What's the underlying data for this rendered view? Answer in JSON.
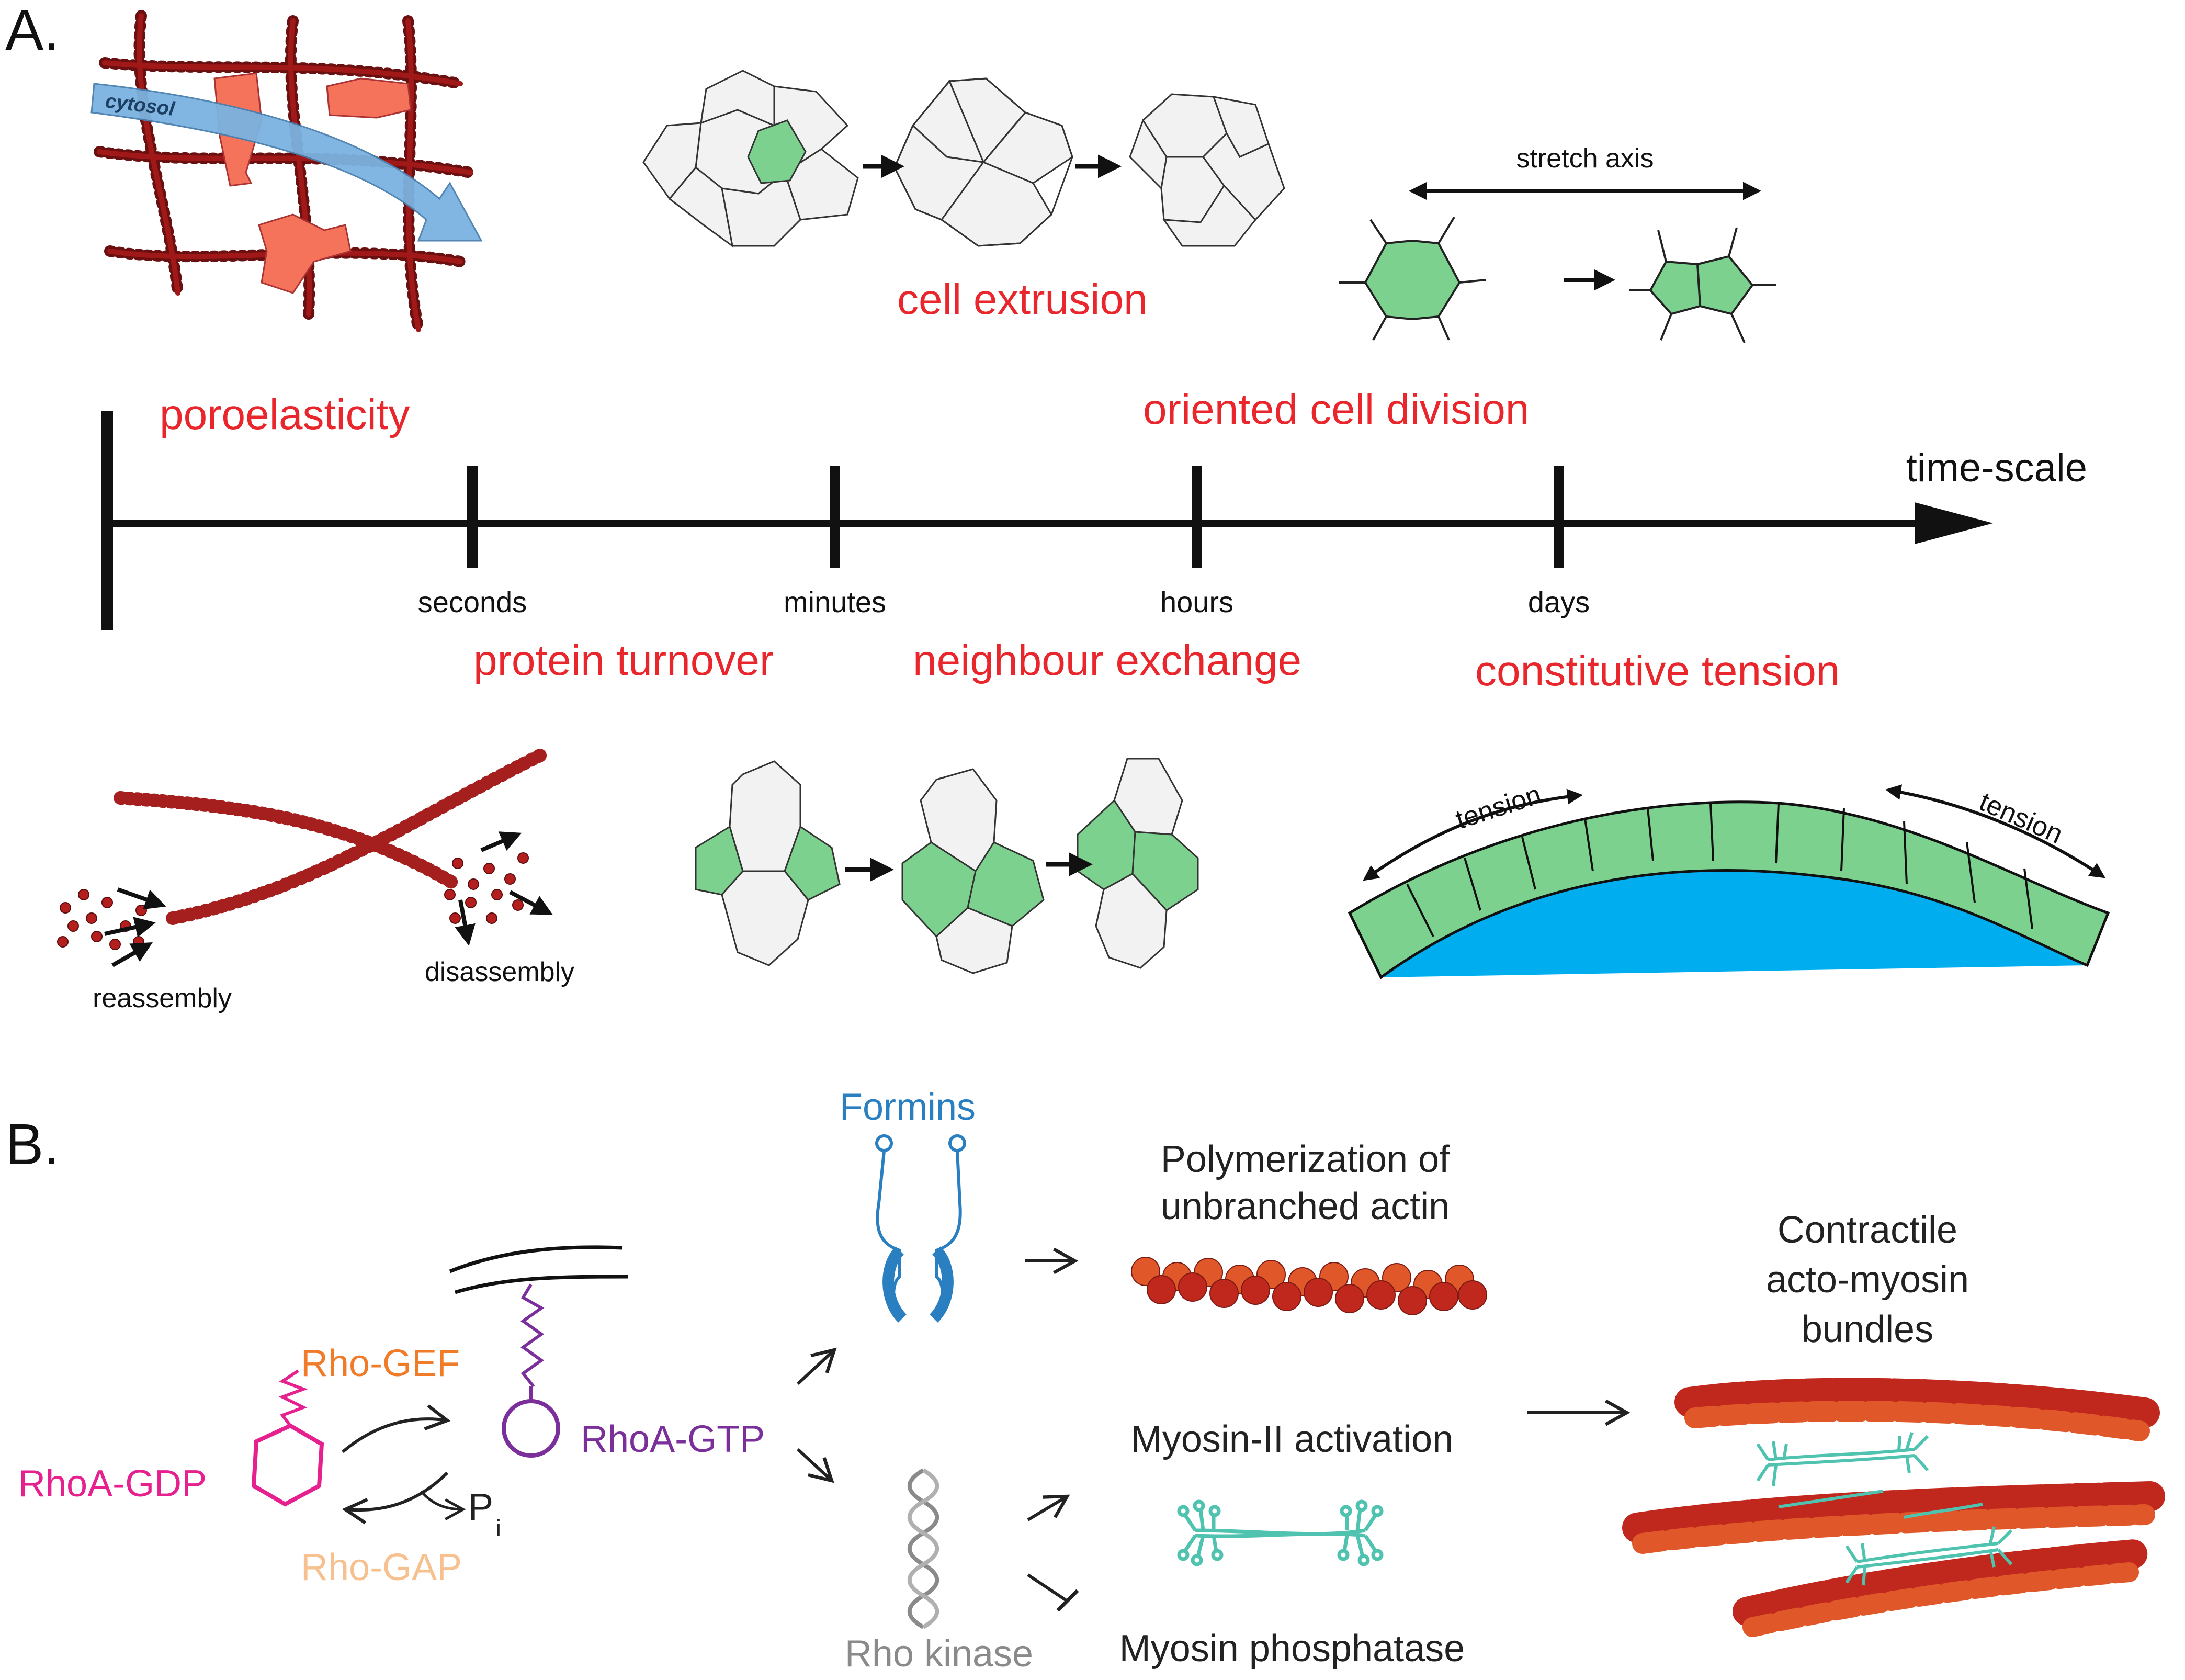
{
  "panel_a": {
    "label": "A.",
    "timeline": {
      "axis_label": "time-scale",
      "ticks": [
        "seconds",
        "minutes",
        "hours",
        "days"
      ]
    },
    "processes": {
      "poroelasticity": "poroelasticity",
      "cell_extrusion": "cell extrusion",
      "oriented_cell_division": "oriented cell division",
      "protein_turnover": "protein turnover",
      "neighbour_exchange": "neighbour exchange",
      "constitutive_tension": "constitutive tension"
    },
    "annotations": {
      "cytosol": "cytosol",
      "stretch_axis": "stretch axis",
      "reassembly": "reassembly",
      "disassembly": "disassembly",
      "tension_left": "tension",
      "tension_right": "tension"
    },
    "colors": {
      "process_text": "#e8262c",
      "cell_green": "#7dd18f",
      "cell_grey": "#f2f2f2",
      "actin": "#a51f1f",
      "cytosol_arrow": "#7ab3e0",
      "blob": "#f4735a",
      "lumen": "#00aeef"
    }
  },
  "panel_b": {
    "label": "B.",
    "rhoa_gdp": "RhoA-GDP",
    "rho_gef": "Rho-GEF",
    "rho_gap": "Rho-GAP",
    "pi": "P",
    "pi_sub": "i",
    "rhoa_gtp": "RhoA-GTP",
    "formins": "Formins",
    "rho_kinase": "Rho kinase",
    "polymerization": [
      "Polymerization of",
      "unbranched actin"
    ],
    "myosin_activation": "Myosin-II activation",
    "myosin_phosphatase": "Myosin phosphatase",
    "contractile": [
      "Contractile",
      "acto-myosin",
      "bundles"
    ],
    "colors": {
      "rhoa_gdp": "#e6218f",
      "rho_gef": "#f07c2a",
      "rho_gap": "#f7c08f",
      "rhoa_gtp": "#7a2f9a",
      "formins": "#2a7fc1",
      "rho_kinase": "#8a8a8a",
      "myosin": "#4fc3b0",
      "actin_dark": "#c0281e",
      "actin_light": "#e0582a"
    }
  }
}
